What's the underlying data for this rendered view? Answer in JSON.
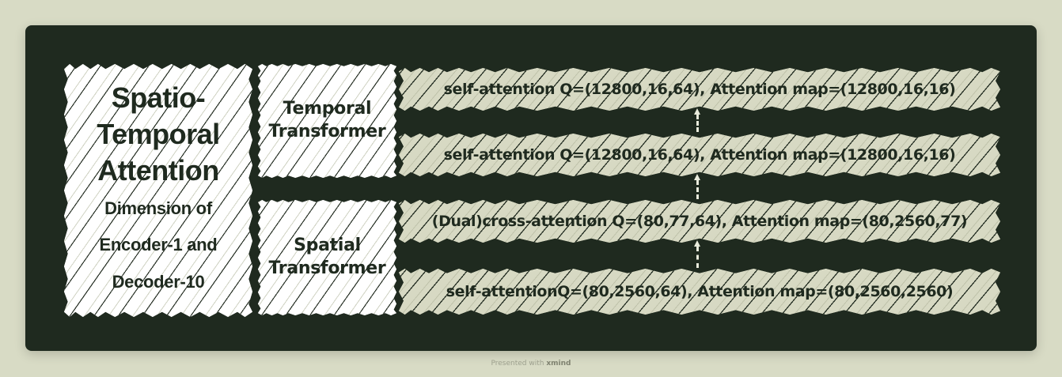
{
  "root": {
    "title_lines": [
      "Spatio-",
      "Temporal",
      "Attention"
    ],
    "subtitle_lines": [
      "Dimension of",
      "Encoder-1 and",
      "Decoder-10"
    ]
  },
  "groups": [
    {
      "label_lines": [
        "Temporal",
        "Transformer"
      ],
      "items": [
        "self-attention Q=(12800,16,64), Attention map=(12800,16,16)",
        "self-attention Q=(12800,16,64), Attention map=(12800,16,16)"
      ]
    },
    {
      "label_lines": [
        "Spatial",
        "Transformer"
      ],
      "items": [
        "(Dual)cross-attention Q=(80,77,64), Attention map=(80,2560,77)",
        "self-attentionQ=(80,2560,64), Attention map=(80,2560,2560)"
      ]
    }
  ],
  "footer": {
    "prefix": "Presented with",
    "brand": "xmind"
  },
  "colors": {
    "background": "#d8dbc5",
    "canvas": "#1f2a1f",
    "node_white": "#ffffff",
    "node_sage": "#d7d9c3",
    "text_dark": "#1f2a1f",
    "connector": "#e9ebdc"
  }
}
